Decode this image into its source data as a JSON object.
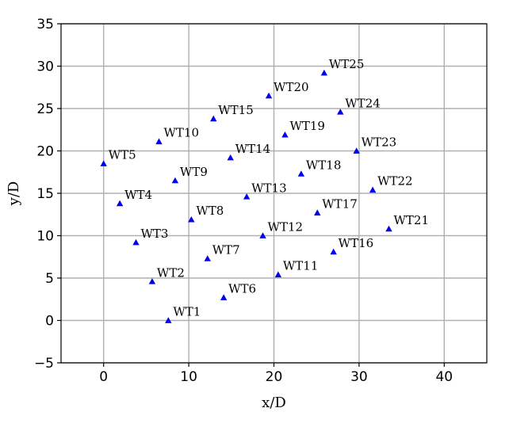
{
  "chart_data": {
    "type": "scatter",
    "title": "",
    "xlabel": "x/D",
    "ylabel": "y/D",
    "xlim": [
      -5,
      45
    ],
    "ylim": [
      -5,
      35
    ],
    "xticks": [
      0,
      10,
      20,
      30,
      40
    ],
    "yticks": [
      -5,
      0,
      5,
      10,
      15,
      20,
      25,
      30,
      35
    ],
    "xtick_labels": [
      "0",
      "10",
      "20",
      "30",
      "40"
    ],
    "ytick_labels": [
      "−5",
      "0",
      "5",
      "10",
      "15",
      "20",
      "25",
      "30",
      "35"
    ],
    "grid": true,
    "marker": "triangle",
    "marker_color": "#0000ee",
    "points": [
      {
        "label": "WT1",
        "x": 7.6,
        "y": 0.0
      },
      {
        "label": "WT2",
        "x": 5.7,
        "y": 4.6
      },
      {
        "label": "WT3",
        "x": 3.8,
        "y": 9.2
      },
      {
        "label": "WT4",
        "x": 1.9,
        "y": 13.8
      },
      {
        "label": "WT5",
        "x": 0.0,
        "y": 18.5
      },
      {
        "label": "WT6",
        "x": 14.1,
        "y": 2.7
      },
      {
        "label": "WT7",
        "x": 12.2,
        "y": 7.3
      },
      {
        "label": "WT8",
        "x": 10.3,
        "y": 11.9
      },
      {
        "label": "WT9",
        "x": 8.4,
        "y": 16.5
      },
      {
        "label": "WT10",
        "x": 6.5,
        "y": 21.1
      },
      {
        "label": "WT11",
        "x": 20.5,
        "y": 5.4
      },
      {
        "label": "WT12",
        "x": 18.7,
        "y": 10.0
      },
      {
        "label": "WT13",
        "x": 16.8,
        "y": 14.6
      },
      {
        "label": "WT14",
        "x": 14.9,
        "y": 19.2
      },
      {
        "label": "WT15",
        "x": 12.9,
        "y": 23.8
      },
      {
        "label": "WT16",
        "x": 27.0,
        "y": 8.1
      },
      {
        "label": "WT17",
        "x": 25.1,
        "y": 12.7
      },
      {
        "label": "WT18",
        "x": 23.2,
        "y": 17.3
      },
      {
        "label": "WT19",
        "x": 21.3,
        "y": 21.9
      },
      {
        "label": "WT20",
        "x": 19.4,
        "y": 26.5
      },
      {
        "label": "WT21",
        "x": 33.5,
        "y": 10.8
      },
      {
        "label": "WT22",
        "x": 31.6,
        "y": 15.4
      },
      {
        "label": "WT23",
        "x": 29.7,
        "y": 20.0
      },
      {
        "label": "WT24",
        "x": 27.8,
        "y": 24.6
      },
      {
        "label": "WT25",
        "x": 25.9,
        "y": 29.2
      }
    ]
  }
}
